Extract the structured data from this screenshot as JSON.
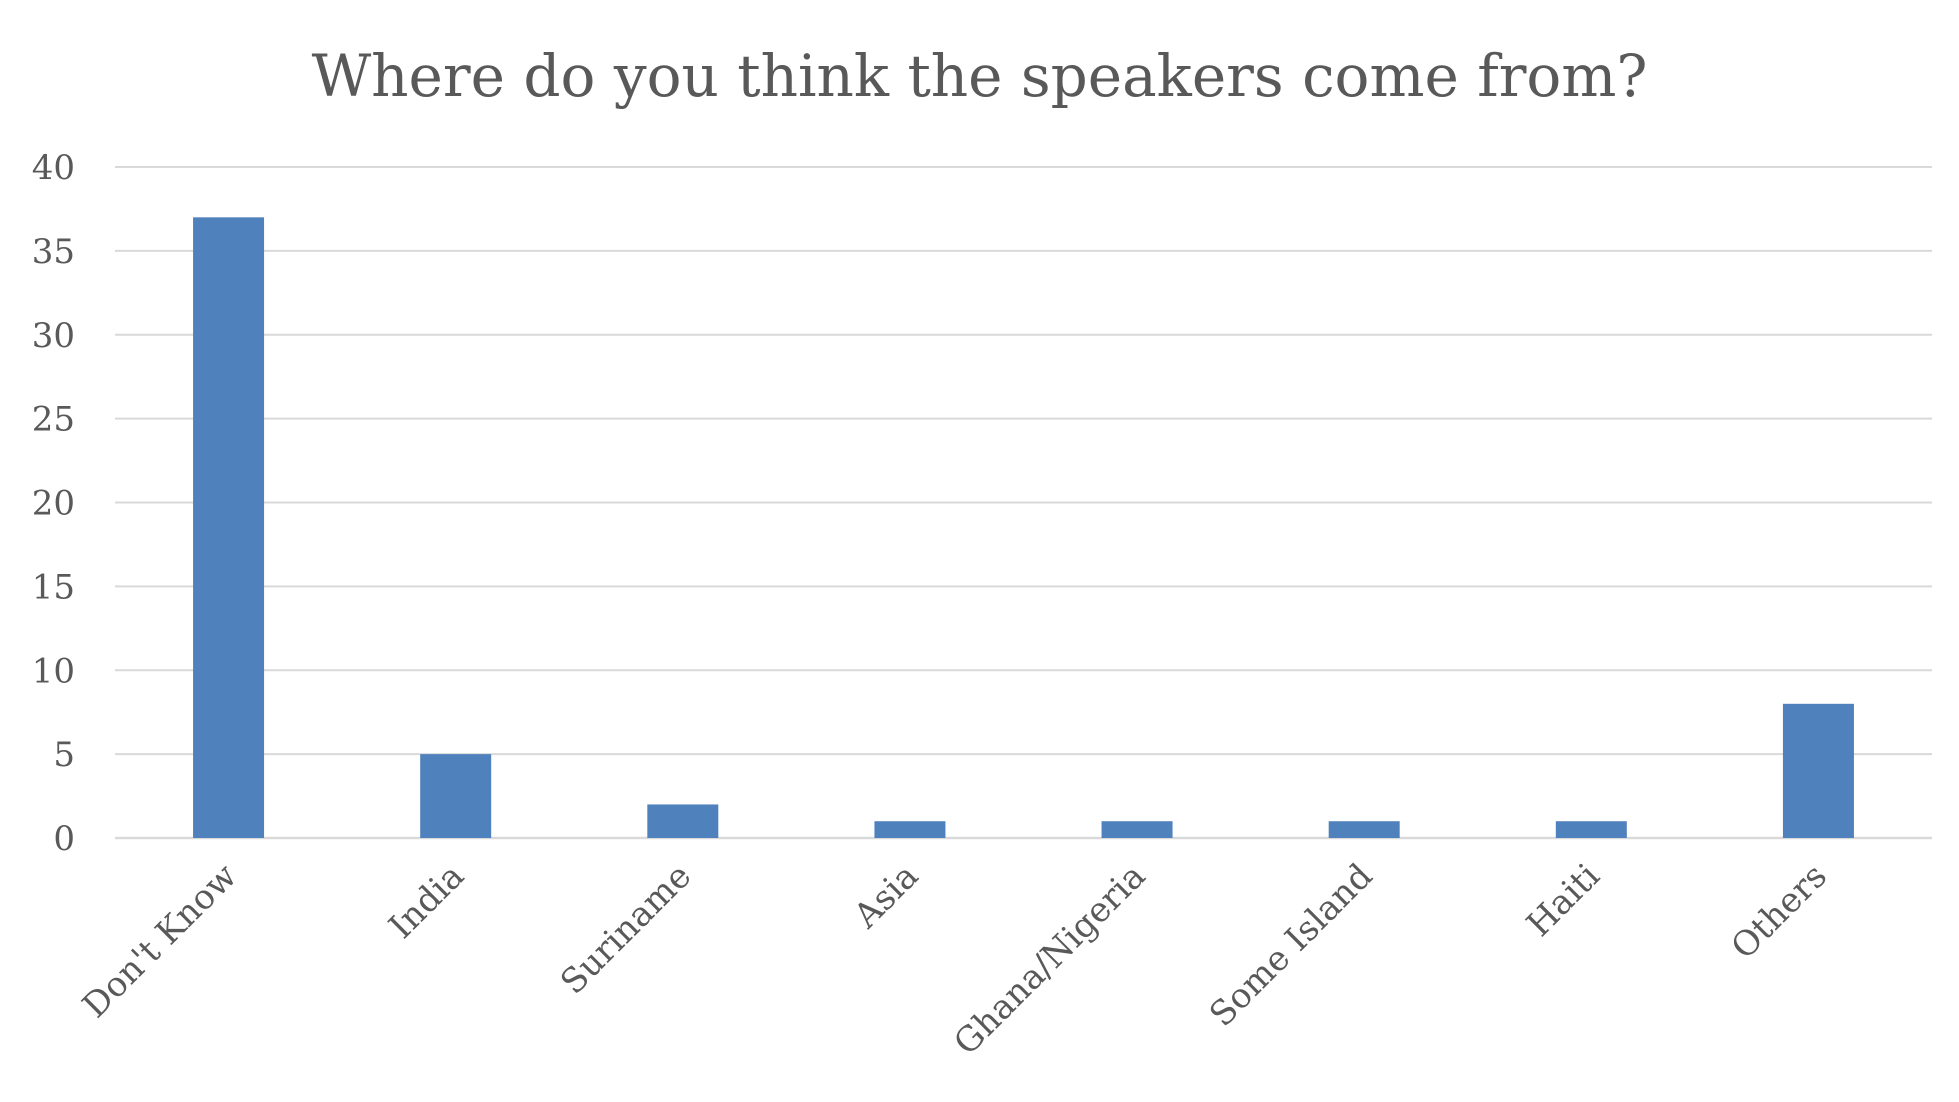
{
  "chart_data": {
    "type": "bar",
    "title": "Where do you think the speakers come from?",
    "categories": [
      "Don't Know",
      "India",
      "Suriname",
      "Asia",
      "Ghana/Nigeria",
      "Some Island",
      "Haiti",
      "Others"
    ],
    "values": [
      37,
      5,
      2,
      1,
      1,
      1,
      1,
      8
    ],
    "y_ticks": [
      "0",
      "5",
      "10",
      "15",
      "20",
      "25",
      "30",
      "35",
      "40"
    ],
    "ylim": [
      0,
      40
    ],
    "ytick_step": 5,
    "xlabel": "",
    "ylabel": "",
    "grid": true,
    "legend": "none",
    "bar_color": "#4F81BD",
    "grid_color": "#D9D9D9",
    "text_color": "#595959"
  }
}
